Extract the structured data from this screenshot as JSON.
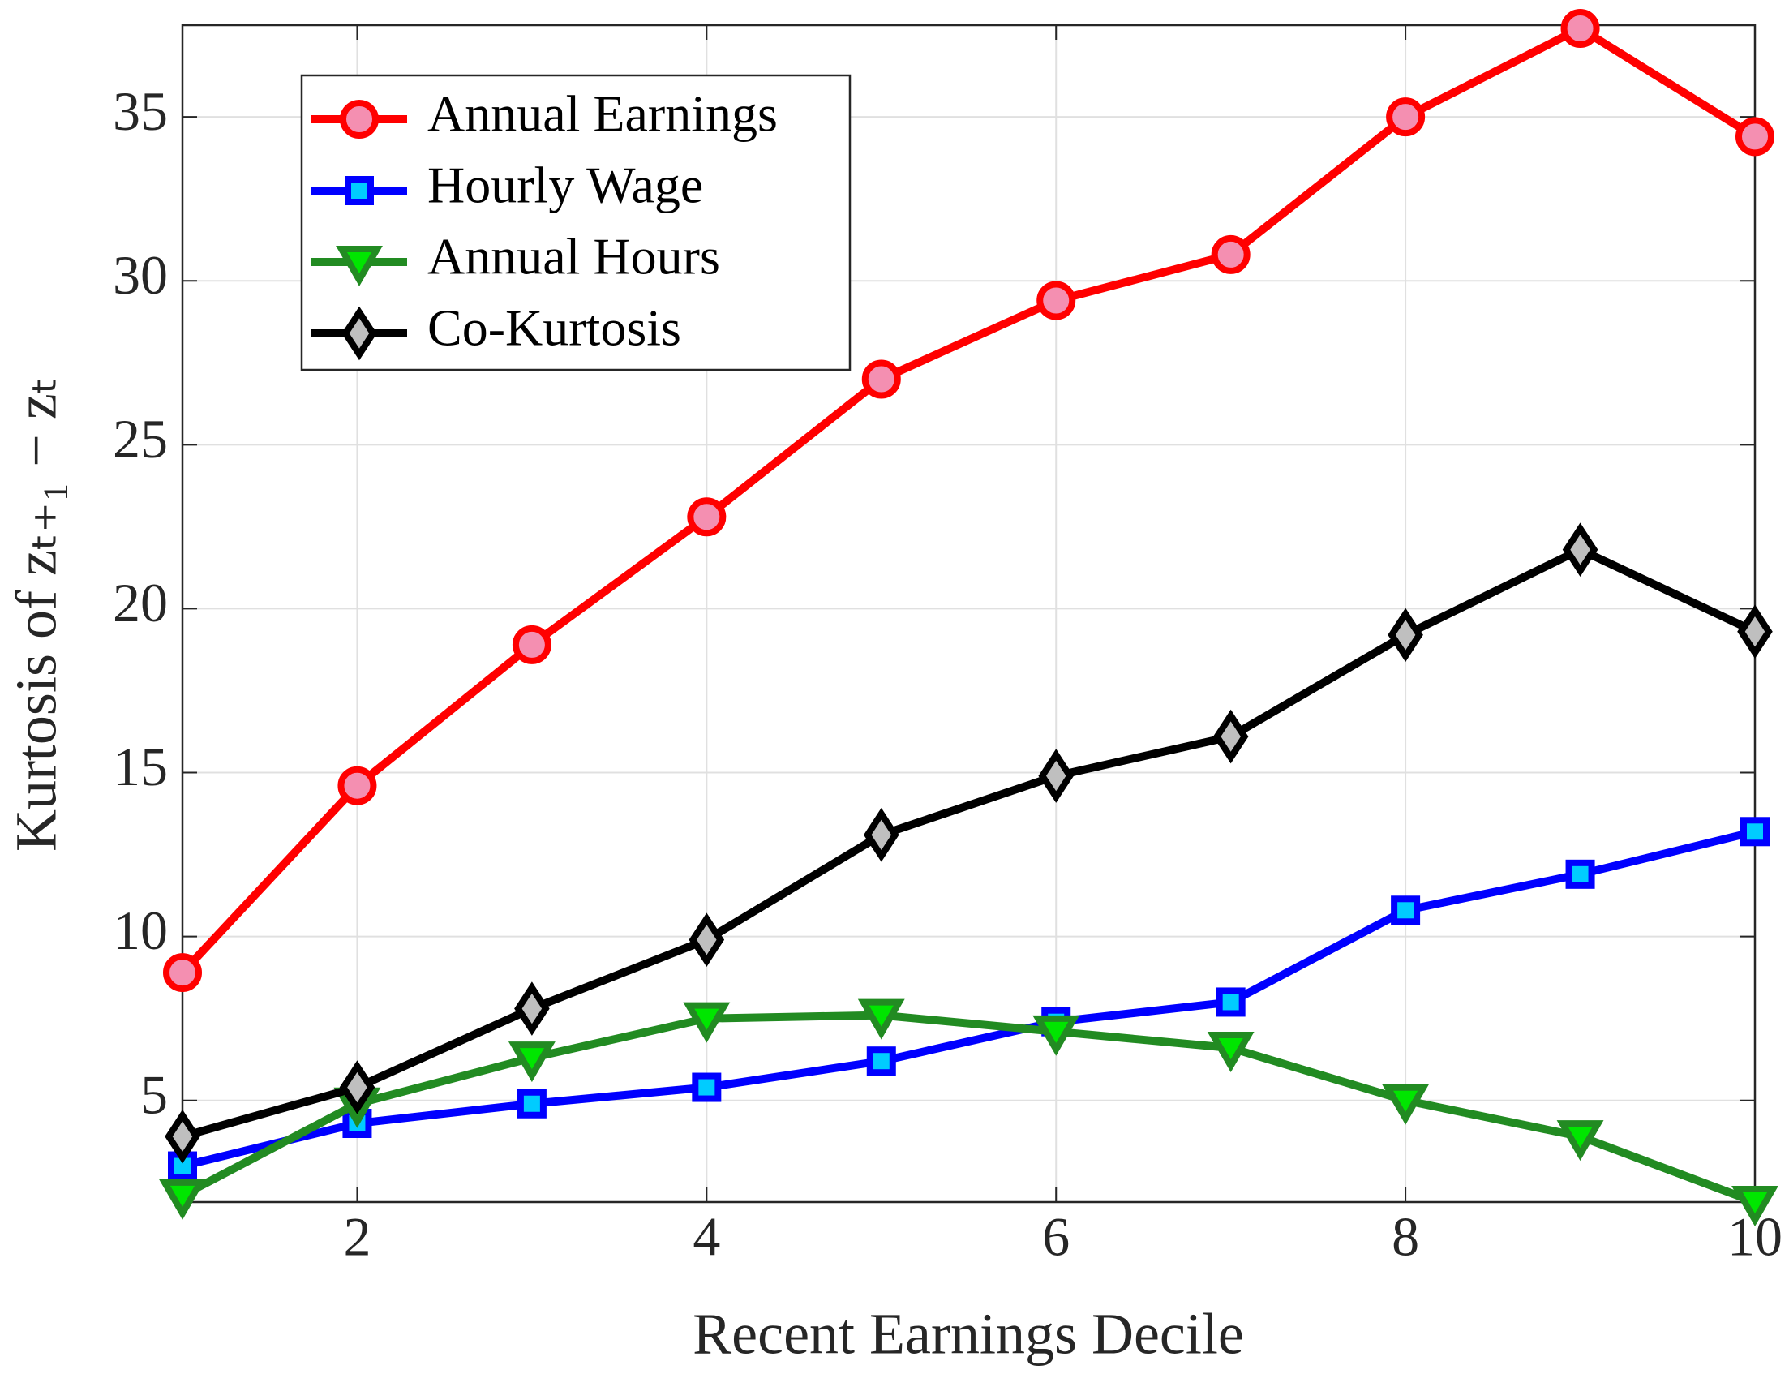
{
  "chart_data": {
    "type": "line",
    "x_label": "Recent Earnings Decile",
    "y_label": "Kurtosis of zₜ₊₁ − zₜ",
    "x": [
      1,
      2,
      3,
      4,
      5,
      6,
      7,
      8,
      9,
      10
    ],
    "xlim": [
      1,
      10
    ],
    "xticks": [
      2,
      4,
      6,
      8,
      10
    ],
    "ylim": [
      1.9,
      37.8
    ],
    "yticks": [
      5,
      10,
      15,
      20,
      25,
      30,
      35
    ],
    "grid": true,
    "legend": "upper left",
    "series": [
      {
        "name": "Annual Earnings",
        "color": "#ff0000",
        "marker": "circle",
        "marker_fill": "#f48fb1",
        "values": [
          8.9,
          14.6,
          18.9,
          22.8,
          27.0,
          29.4,
          30.8,
          35.0,
          37.7,
          34.4
        ]
      },
      {
        "name": "Hourly Wage",
        "color": "#0000ff",
        "marker": "square",
        "marker_fill": "#00ccff",
        "values": [
          3.0,
          4.3,
          4.9,
          5.4,
          6.2,
          7.4,
          8.0,
          10.8,
          11.9,
          13.2
        ]
      },
      {
        "name": "Annual Hours",
        "color": "#228b22",
        "marker": "triangle-down",
        "marker_fill": "#00e600",
        "values": [
          2.1,
          4.9,
          6.3,
          7.5,
          7.6,
          7.1,
          6.6,
          5.0,
          3.9,
          1.9
        ]
      },
      {
        "name": "Co-Kurtosis",
        "color": "#000000",
        "marker": "diamond",
        "marker_fill": "#bfbfbf",
        "values": [
          3.9,
          5.4,
          7.8,
          9.9,
          13.1,
          14.9,
          16.1,
          19.2,
          21.8,
          19.3
        ]
      }
    ]
  }
}
